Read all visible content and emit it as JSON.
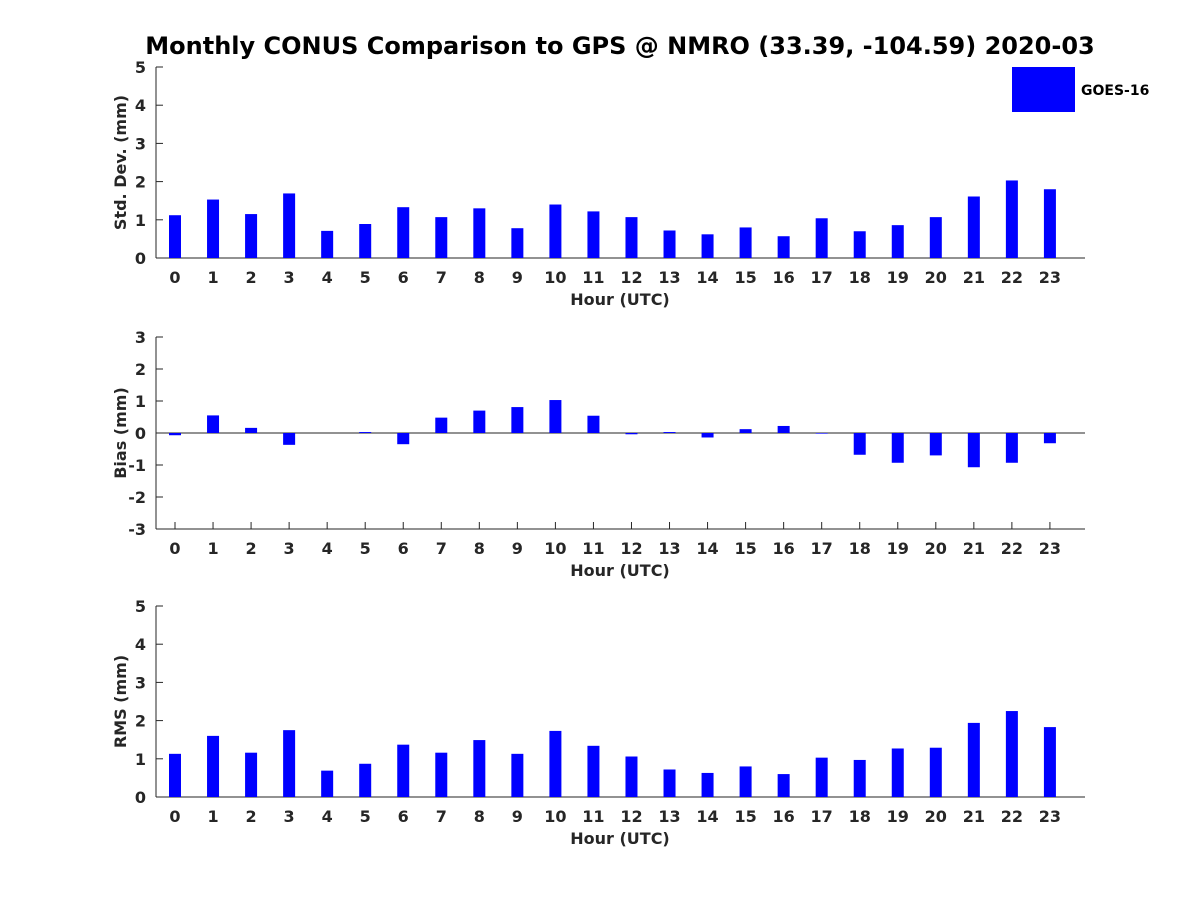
{
  "title": "Monthly CONUS Comparison to GPS @ NMRO (33.39, -104.59) 2020-03",
  "legend": {
    "label": "GOES-16",
    "color": "#0000ff",
    "placement": "top-right"
  },
  "chart_data": [
    {
      "type": "bar",
      "xlabel": "Hour (UTC)",
      "ylabel": "Std. Dev. (mm)",
      "categories": [
        "0",
        "1",
        "2",
        "3",
        "4",
        "5",
        "6",
        "7",
        "8",
        "9",
        "10",
        "11",
        "12",
        "13",
        "14",
        "15",
        "16",
        "17",
        "18",
        "19",
        "20",
        "21",
        "22",
        "23"
      ],
      "series": [
        {
          "name": "GOES-16",
          "values": [
            1.12,
            1.53,
            1.15,
            1.69,
            0.71,
            0.89,
            1.33,
            1.07,
            1.3,
            0.78,
            1.4,
            1.22,
            1.07,
            0.72,
            0.62,
            0.8,
            0.57,
            1.04,
            0.7,
            0.86,
            1.07,
            1.61,
            2.03,
            1.8
          ]
        }
      ],
      "ylim": [
        0,
        5
      ],
      "yticks": [
        "0",
        "1",
        "2",
        "3",
        "4",
        "5"
      ],
      "bar_color": "#0000ff",
      "grid": false
    },
    {
      "type": "bar",
      "xlabel": "Hour (UTC)",
      "ylabel": "Bias (mm)",
      "categories": [
        "0",
        "1",
        "2",
        "3",
        "4",
        "5",
        "6",
        "7",
        "8",
        "9",
        "10",
        "11",
        "12",
        "13",
        "14",
        "15",
        "16",
        "17",
        "18",
        "19",
        "20",
        "21",
        "22",
        "23"
      ],
      "series": [
        {
          "name": "GOES-16",
          "values": [
            -0.07,
            0.55,
            0.16,
            -0.37,
            0.0,
            0.03,
            -0.35,
            0.48,
            0.7,
            0.81,
            1.03,
            0.54,
            -0.04,
            0.03,
            -0.14,
            0.12,
            0.22,
            -0.02,
            -0.68,
            -0.93,
            -0.7,
            -1.07,
            -0.93,
            -0.32
          ]
        }
      ],
      "ylim": [
        -3,
        3
      ],
      "yticks": [
        "-3",
        "-2",
        "-1",
        "0",
        "1",
        "2",
        "3"
      ],
      "zero_line": true,
      "bar_color": "#0000ff",
      "grid": false
    },
    {
      "type": "bar",
      "xlabel": "Hour (UTC)",
      "ylabel": "RMS (mm)",
      "categories": [
        "0",
        "1",
        "2",
        "3",
        "4",
        "5",
        "6",
        "7",
        "8",
        "9",
        "10",
        "11",
        "12",
        "13",
        "14",
        "15",
        "16",
        "17",
        "18",
        "19",
        "20",
        "21",
        "22",
        "23"
      ],
      "series": [
        {
          "name": "GOES-16",
          "values": [
            1.13,
            1.6,
            1.16,
            1.75,
            0.69,
            0.87,
            1.37,
            1.16,
            1.49,
            1.13,
            1.73,
            1.34,
            1.06,
            0.72,
            0.63,
            0.8,
            0.6,
            1.03,
            0.97,
            1.27,
            1.29,
            1.94,
            2.25,
            1.83
          ]
        }
      ],
      "ylim": [
        0,
        5
      ],
      "yticks": [
        "0",
        "1",
        "2",
        "3",
        "4",
        "5"
      ],
      "bar_color": "#0000ff",
      "grid": false
    }
  ]
}
